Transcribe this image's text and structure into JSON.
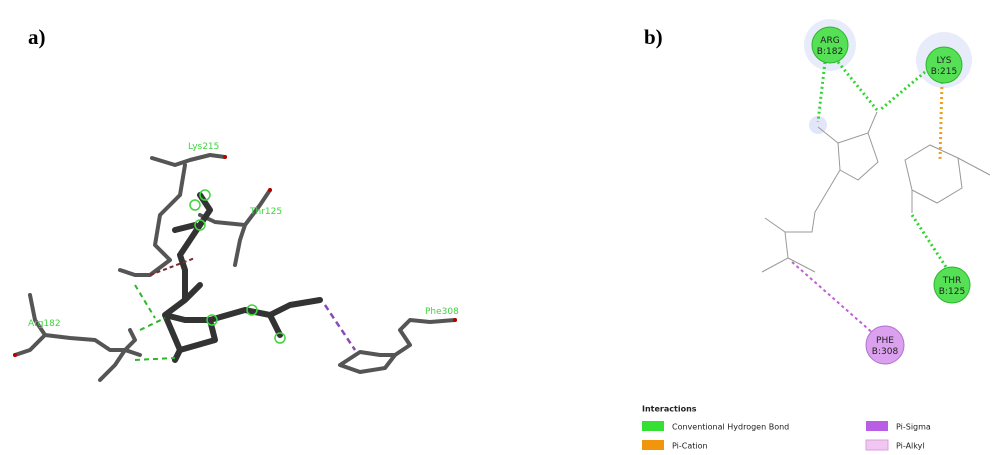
{
  "panel_a": {
    "label": "a)",
    "residues": [
      "Lys215",
      "Thr125",
      "Arg182",
      "Phe308"
    ]
  },
  "panel_b": {
    "label": "b)",
    "residues": [
      {
        "name": "ARG",
        "chain": "B:182"
      },
      {
        "name": "LYS",
        "chain": "B:215"
      },
      {
        "name": "THR",
        "chain": "B:125"
      },
      {
        "name": "PHE",
        "chain": "B:308"
      }
    ]
  },
  "legend": {
    "title": "Interactions",
    "items": [
      "Conventional Hydrogen Bond",
      "Pi-Cation",
      "Pi-Sigma",
      "Pi-Alkyl"
    ]
  }
}
